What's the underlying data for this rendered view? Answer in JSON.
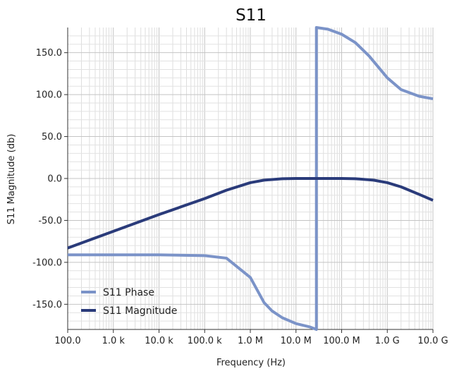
{
  "chart_data": {
    "type": "line",
    "title": "S11",
    "xlabel": "Frequency (Hz)",
    "ylabel": "S11 Magnitude (db)",
    "x_scale": "log",
    "xlim": [
      100,
      10000000000
    ],
    "ylim": [
      -180,
      180
    ],
    "grid": true,
    "legend_position": "bottom-left",
    "x_ticks": [
      {
        "value": 100,
        "label": "100.0"
      },
      {
        "value": 1000,
        "label": "1.0 k"
      },
      {
        "value": 10000,
        "label": "10.0 k"
      },
      {
        "value": 100000,
        "label": "100.0 k"
      },
      {
        "value": 1000000,
        "label": "1.0 M"
      },
      {
        "value": 10000000,
        "label": "10.0 M"
      },
      {
        "value": 100000000,
        "label": "100.0 M"
      },
      {
        "value": 1000000000,
        "label": "1.0 G"
      },
      {
        "value": 10000000000,
        "label": "10.0 G"
      }
    ],
    "y_ticks": [
      {
        "value": 150,
        "label": "150.0"
      },
      {
        "value": 100,
        "label": "100.0"
      },
      {
        "value": 50,
        "label": "50.0"
      },
      {
        "value": 0,
        "label": "0.0"
      },
      {
        "value": -50,
        "label": "-50.0"
      },
      {
        "value": -100,
        "label": "-100.0"
      },
      {
        "value": -150,
        "label": "-150.0"
      }
    ],
    "series": [
      {
        "name": "S11 Phase",
        "color": "#7b93c8",
        "x": [
          100,
          1000,
          10000,
          100000,
          300000,
          1000000,
          2000000,
          3000000,
          5000000,
          10000000,
          20000000,
          28000000,
          28000001,
          50000000,
          100000000,
          200000000,
          400000000,
          1000000000,
          2000000000,
          5000000000,
          10000000000
        ],
        "y": [
          -91,
          -91,
          -91,
          -92,
          -95,
          -118,
          -148,
          -158,
          -166,
          -173,
          -177,
          -180,
          180,
          178,
          172,
          162,
          146,
          120,
          106,
          98,
          95
        ]
      },
      {
        "name": "S11 Magnitude",
        "color": "#2a3b7a",
        "x": [
          100,
          1000,
          10000,
          100000,
          300000,
          1000000,
          2000000,
          5000000,
          10000000,
          50000000,
          100000000,
          200000000,
          500000000,
          1000000000,
          2000000000,
          5000000000,
          10000000000
        ],
        "y": [
          -83,
          -63,
          -43,
          -24,
          -14,
          -5,
          -2,
          -0.3,
          0,
          0,
          0,
          -0.3,
          -2,
          -5,
          -10,
          -19,
          -26
        ]
      }
    ]
  }
}
